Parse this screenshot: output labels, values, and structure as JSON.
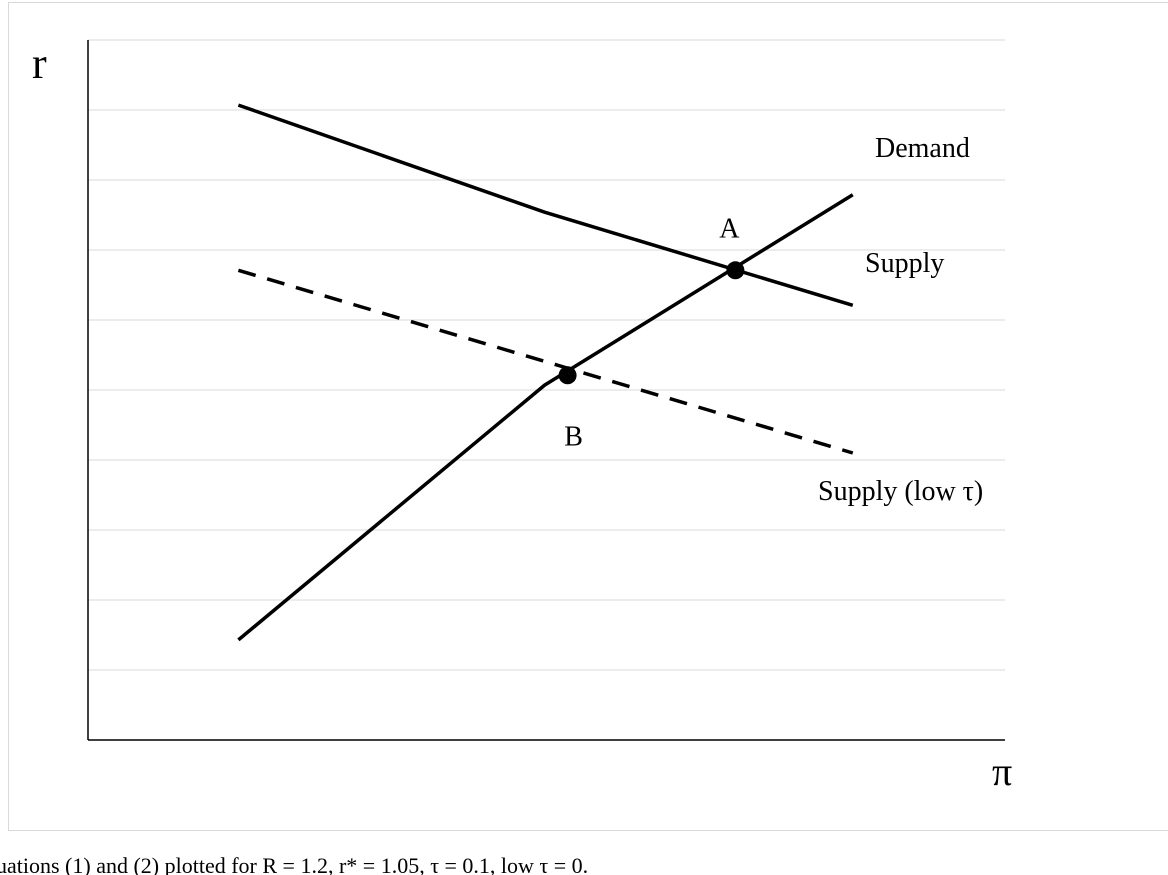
{
  "chart_data": {
    "type": "line",
    "xlabel": "π",
    "ylabel": "r",
    "xlim": [
      0,
      10
    ],
    "ylim": [
      0,
      10
    ],
    "yticks": [
      1,
      2,
      3,
      4,
      5,
      6,
      7,
      8,
      9,
      10
    ],
    "grid": true,
    "series": [
      {
        "name": "Demand",
        "color": "#000000",
        "dashed": false,
        "x": [
          1.64,
          4.98,
          8.34
        ],
        "values": [
          1.43,
          5.07,
          7.79
        ]
      },
      {
        "name": "Supply",
        "color": "#000000",
        "dashed": false,
        "x": [
          1.64,
          4.98,
          8.34
        ],
        "values": [
          9.07,
          7.54,
          6.21
        ]
      },
      {
        "name": "Supply (low  τ)",
        "color": "#000000",
        "dashed": true,
        "x": [
          1.64,
          8.34
        ],
        "values": [
          6.71,
          4.1
        ]
      }
    ],
    "points": [
      {
        "label": "A",
        "x": 7.06,
        "y": 6.71
      },
      {
        "label": "B",
        "x": 5.23,
        "y": 5.21
      }
    ],
    "caption": "uations (1) and (2) plotted for R = 1.2, r* = 1.05, τ = 0.1, low τ = 0."
  }
}
